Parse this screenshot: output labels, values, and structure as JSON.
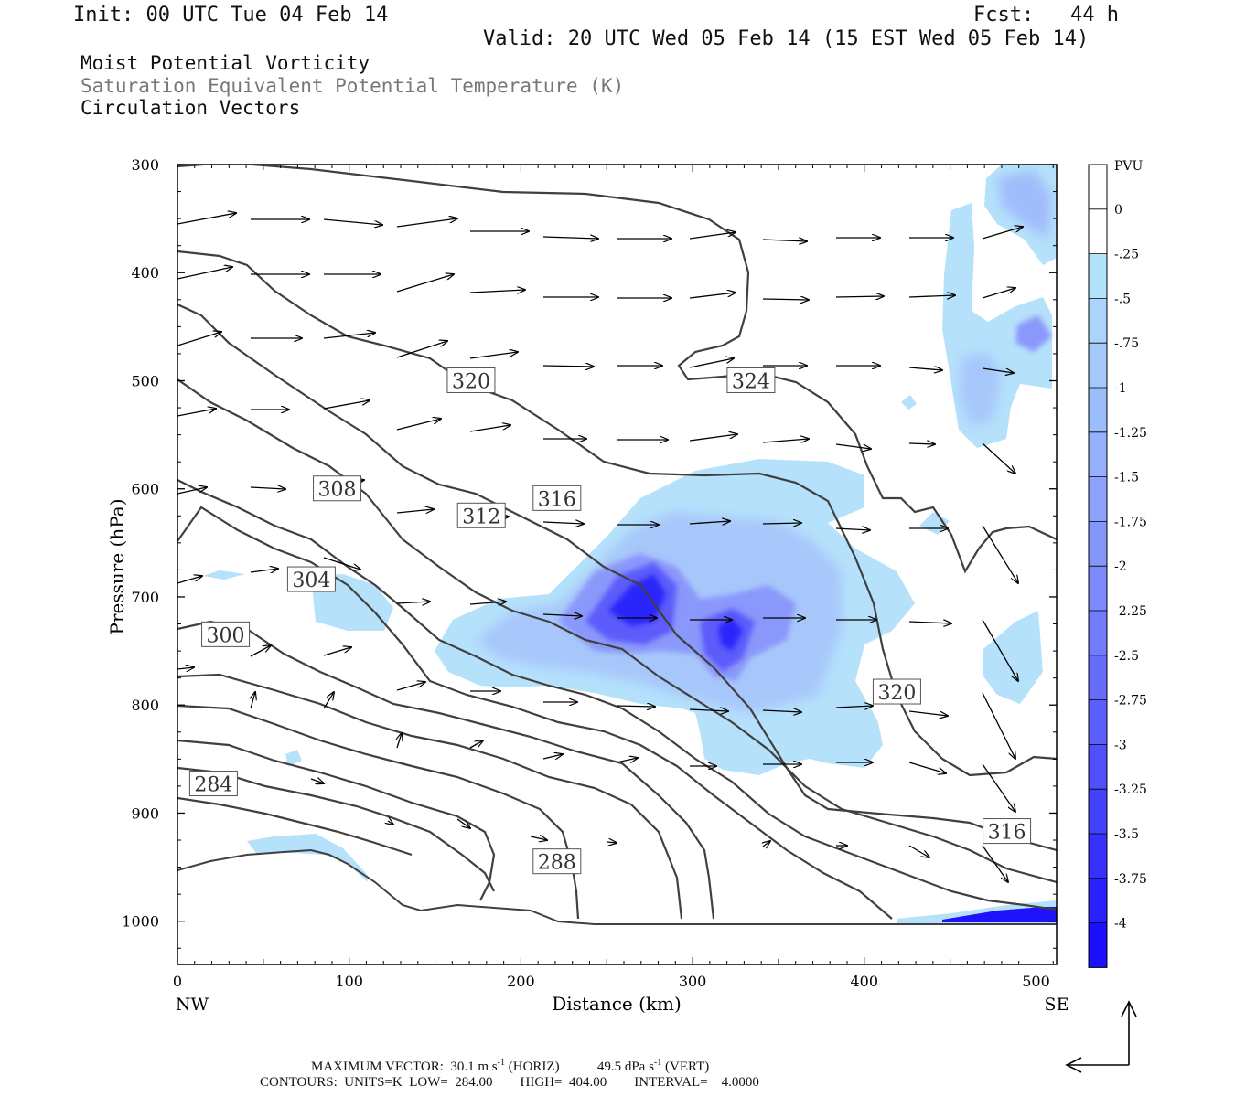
{
  "header": {
    "init": "Init: 00 UTC Tue 04 Feb 14",
    "fcst": "Fcst:   44 h",
    "valid": "Valid: 20 UTC Wed 05 Feb 14 (15 EST Wed 05 Feb 14)",
    "field1": "Moist Potential Vorticity",
    "field2": "Saturation Equivalent Potential Temperature (K)",
    "field3": "Circulation Vectors"
  },
  "footer": {
    "max_label": "MAXIMUM VECTOR:",
    "horiz": "30.1 m s",
    "horiz_unit": "(HORIZ)",
    "vert": "49.5 dPa s",
    "vert_unit": "(VERT)",
    "exp": "-1",
    "contours": "CONTOURS:  UNITS=K  LOW=  284.00        HIGH=  404.00        INTERVAL=    4.0000"
  },
  "chart_data": {
    "type": "contour",
    "xlabel": "Distance (km)",
    "ylabel": "Pressure (hPa)",
    "xlim": [
      0,
      512
    ],
    "ylim": [
      1040,
      300
    ],
    "x_ticks": [
      0,
      100,
      200,
      300,
      400,
      500
    ],
    "y_ticks": [
      300,
      400,
      500,
      600,
      700,
      800,
      900,
      1000
    ],
    "x_end_labels": [
      "NW",
      "SE"
    ],
    "colorbar": {
      "unit": "PVU",
      "labels": [
        "0",
        "-.25",
        "-.5",
        "-.75",
        "-1",
        "-1.25",
        "-1.5",
        "-1.75",
        "-2",
        "-2.25",
        "-2.5",
        "-2.75",
        "-3",
        "-3.25",
        "-3.5",
        "-3.75",
        "-4"
      ],
      "colors": [
        "#ffffff",
        "#ffffff",
        "#b3e2fb",
        "#a9d5fb",
        "#a3c9fb",
        "#9bbdfb",
        "#95b1fb",
        "#8da3fb",
        "#8596fb",
        "#7b89fb",
        "#717bfb",
        "#676dfb",
        "#5b5ffb",
        "#5050fb",
        "#4342fb",
        "#3632fb",
        "#2a22fb",
        "#1a10fb"
      ]
    },
    "theta_e_contour_labels": [
      {
        "value": "320",
        "x": 171,
        "p": 500
      },
      {
        "value": "324",
        "x": 334,
        "p": 500
      },
      {
        "value": "316",
        "x": 221,
        "p": 609
      },
      {
        "value": "312",
        "x": 177,
        "p": 625
      },
      {
        "value": "308",
        "x": 93,
        "p": 600
      },
      {
        "value": "304",
        "x": 78,
        "p": 684
      },
      {
        "value": "300",
        "x": 28,
        "p": 735
      },
      {
        "value": "320",
        "x": 419,
        "p": 788
      },
      {
        "value": "284",
        "x": 21,
        "p": 873
      },
      {
        "value": "288",
        "x": 221,
        "p": 945
      },
      {
        "value": "316",
        "x": 483,
        "p": 917
      }
    ],
    "max_vector": {
      "horizontal_m_s": 30.1,
      "vertical_dPa_s": 49.5
    }
  }
}
